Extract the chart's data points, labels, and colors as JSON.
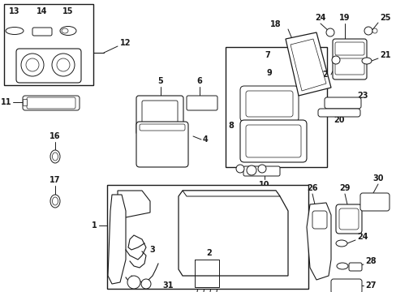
{
  "bg": "#ffffff",
  "line_color": "#1a1a1a",
  "figsize": [
    4.89,
    3.6
  ],
  "dpi": 100
}
